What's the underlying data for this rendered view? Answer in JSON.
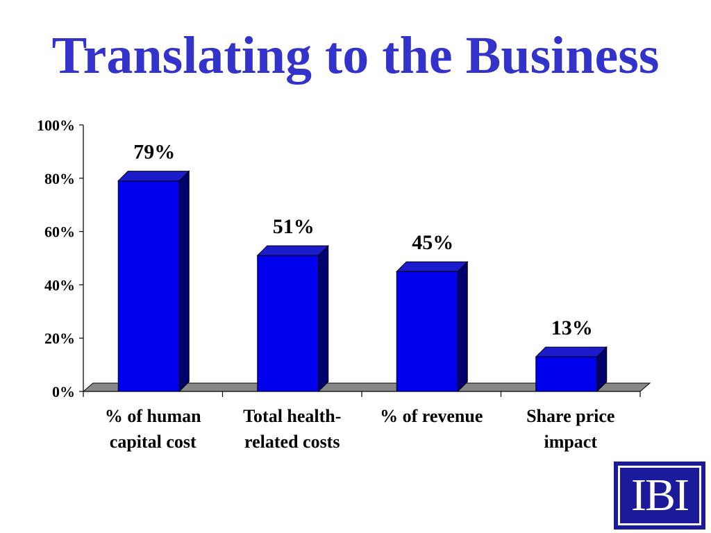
{
  "slide": {
    "title": "Translating to the Business",
    "logo_text": "IBI"
  },
  "colors": {
    "title": "#3333cc",
    "bar_front": "#0000ee",
    "bar_top": "#1c1ccc",
    "bar_side": "#00006e",
    "floor": "#888888"
  },
  "chart_data": {
    "type": "bar",
    "categories": [
      [
        "%  of human",
        "capital cost"
      ],
      [
        "Total health-",
        "related costs"
      ],
      [
        "%  of revenue"
      ],
      [
        "Share price",
        "impact"
      ]
    ],
    "values": [
      79,
      51,
      45,
      13
    ],
    "data_labels": [
      "79%",
      "51%",
      "45%",
      "13%"
    ],
    "ylim": [
      0,
      100
    ],
    "yticks": [
      0,
      20,
      40,
      60,
      80,
      100
    ],
    "ytick_labels": [
      "0%",
      "20%",
      "40%",
      "60%",
      "80%",
      "100%"
    ],
    "grid": false,
    "legend": "none",
    "style": "3d-column"
  }
}
